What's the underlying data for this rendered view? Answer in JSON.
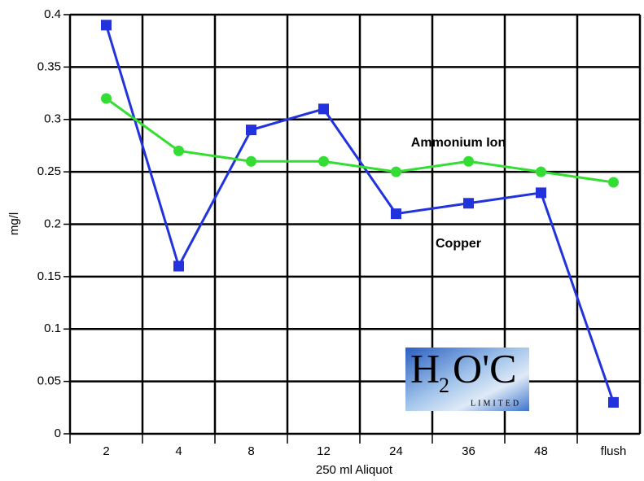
{
  "chart_data": {
    "type": "line",
    "x_label": "250 ml Aliquot",
    "y_label": "mg/l",
    "categories": [
      "2",
      "4",
      "8",
      "12",
      "24",
      "36",
      "48",
      "flush"
    ],
    "series": [
      {
        "name": "Copper",
        "color": "#2233dd",
        "marker": "square",
        "values": [
          0.39,
          0.16,
          0.29,
          0.31,
          0.21,
          0.22,
          0.23,
          0.03
        ]
      },
      {
        "name": "Ammonium Ion",
        "color": "#33dd33",
        "marker": "circle",
        "values": [
          0.32,
          0.27,
          0.26,
          0.26,
          0.25,
          0.26,
          0.25,
          0.24
        ]
      }
    ],
    "ylim": [
      0,
      0.4
    ],
    "yticks": [
      0,
      0.05,
      0.1,
      0.15,
      0.2,
      0.25,
      0.3,
      0.35,
      0.4
    ],
    "grid": true,
    "logo": {
      "main": "H",
      "sub": "2",
      "rest": "O'C",
      "tagline": "LIMITED"
    }
  }
}
